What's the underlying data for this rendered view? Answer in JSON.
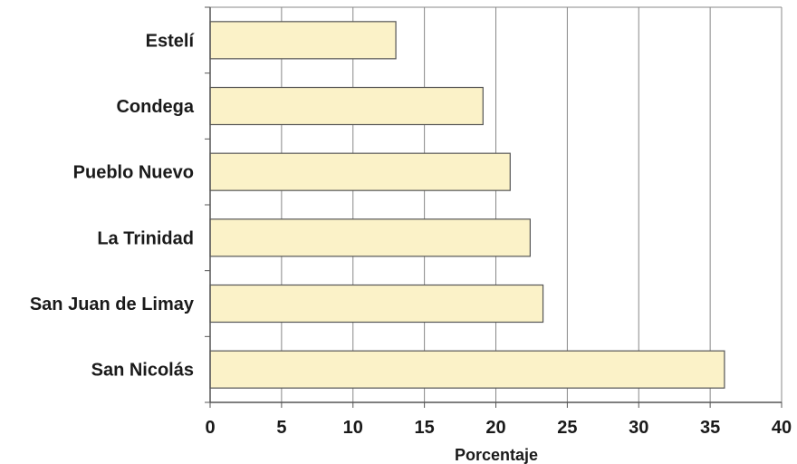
{
  "chart_data": {
    "type": "bar",
    "orientation": "horizontal",
    "categories": [
      "Estelí",
      "Condega",
      "Pueblo Nuevo",
      "La Trinidad",
      "San Juan de Limay",
      "San Nicolás"
    ],
    "values": [
      13,
      19.1,
      21,
      22.4,
      23.3,
      36
    ],
    "xlabel": "Porcentaje",
    "ylabel": "",
    "xlim": [
      0,
      40
    ],
    "xticks": [
      "0",
      "5",
      "10",
      "15",
      "20",
      "25",
      "30",
      "35",
      "40"
    ],
    "grid": "vertical",
    "colors": {
      "bar_fill": "#fbf2c8",
      "bar_stroke": "#555555",
      "grid": "#888888",
      "axis": "#555555"
    }
  }
}
